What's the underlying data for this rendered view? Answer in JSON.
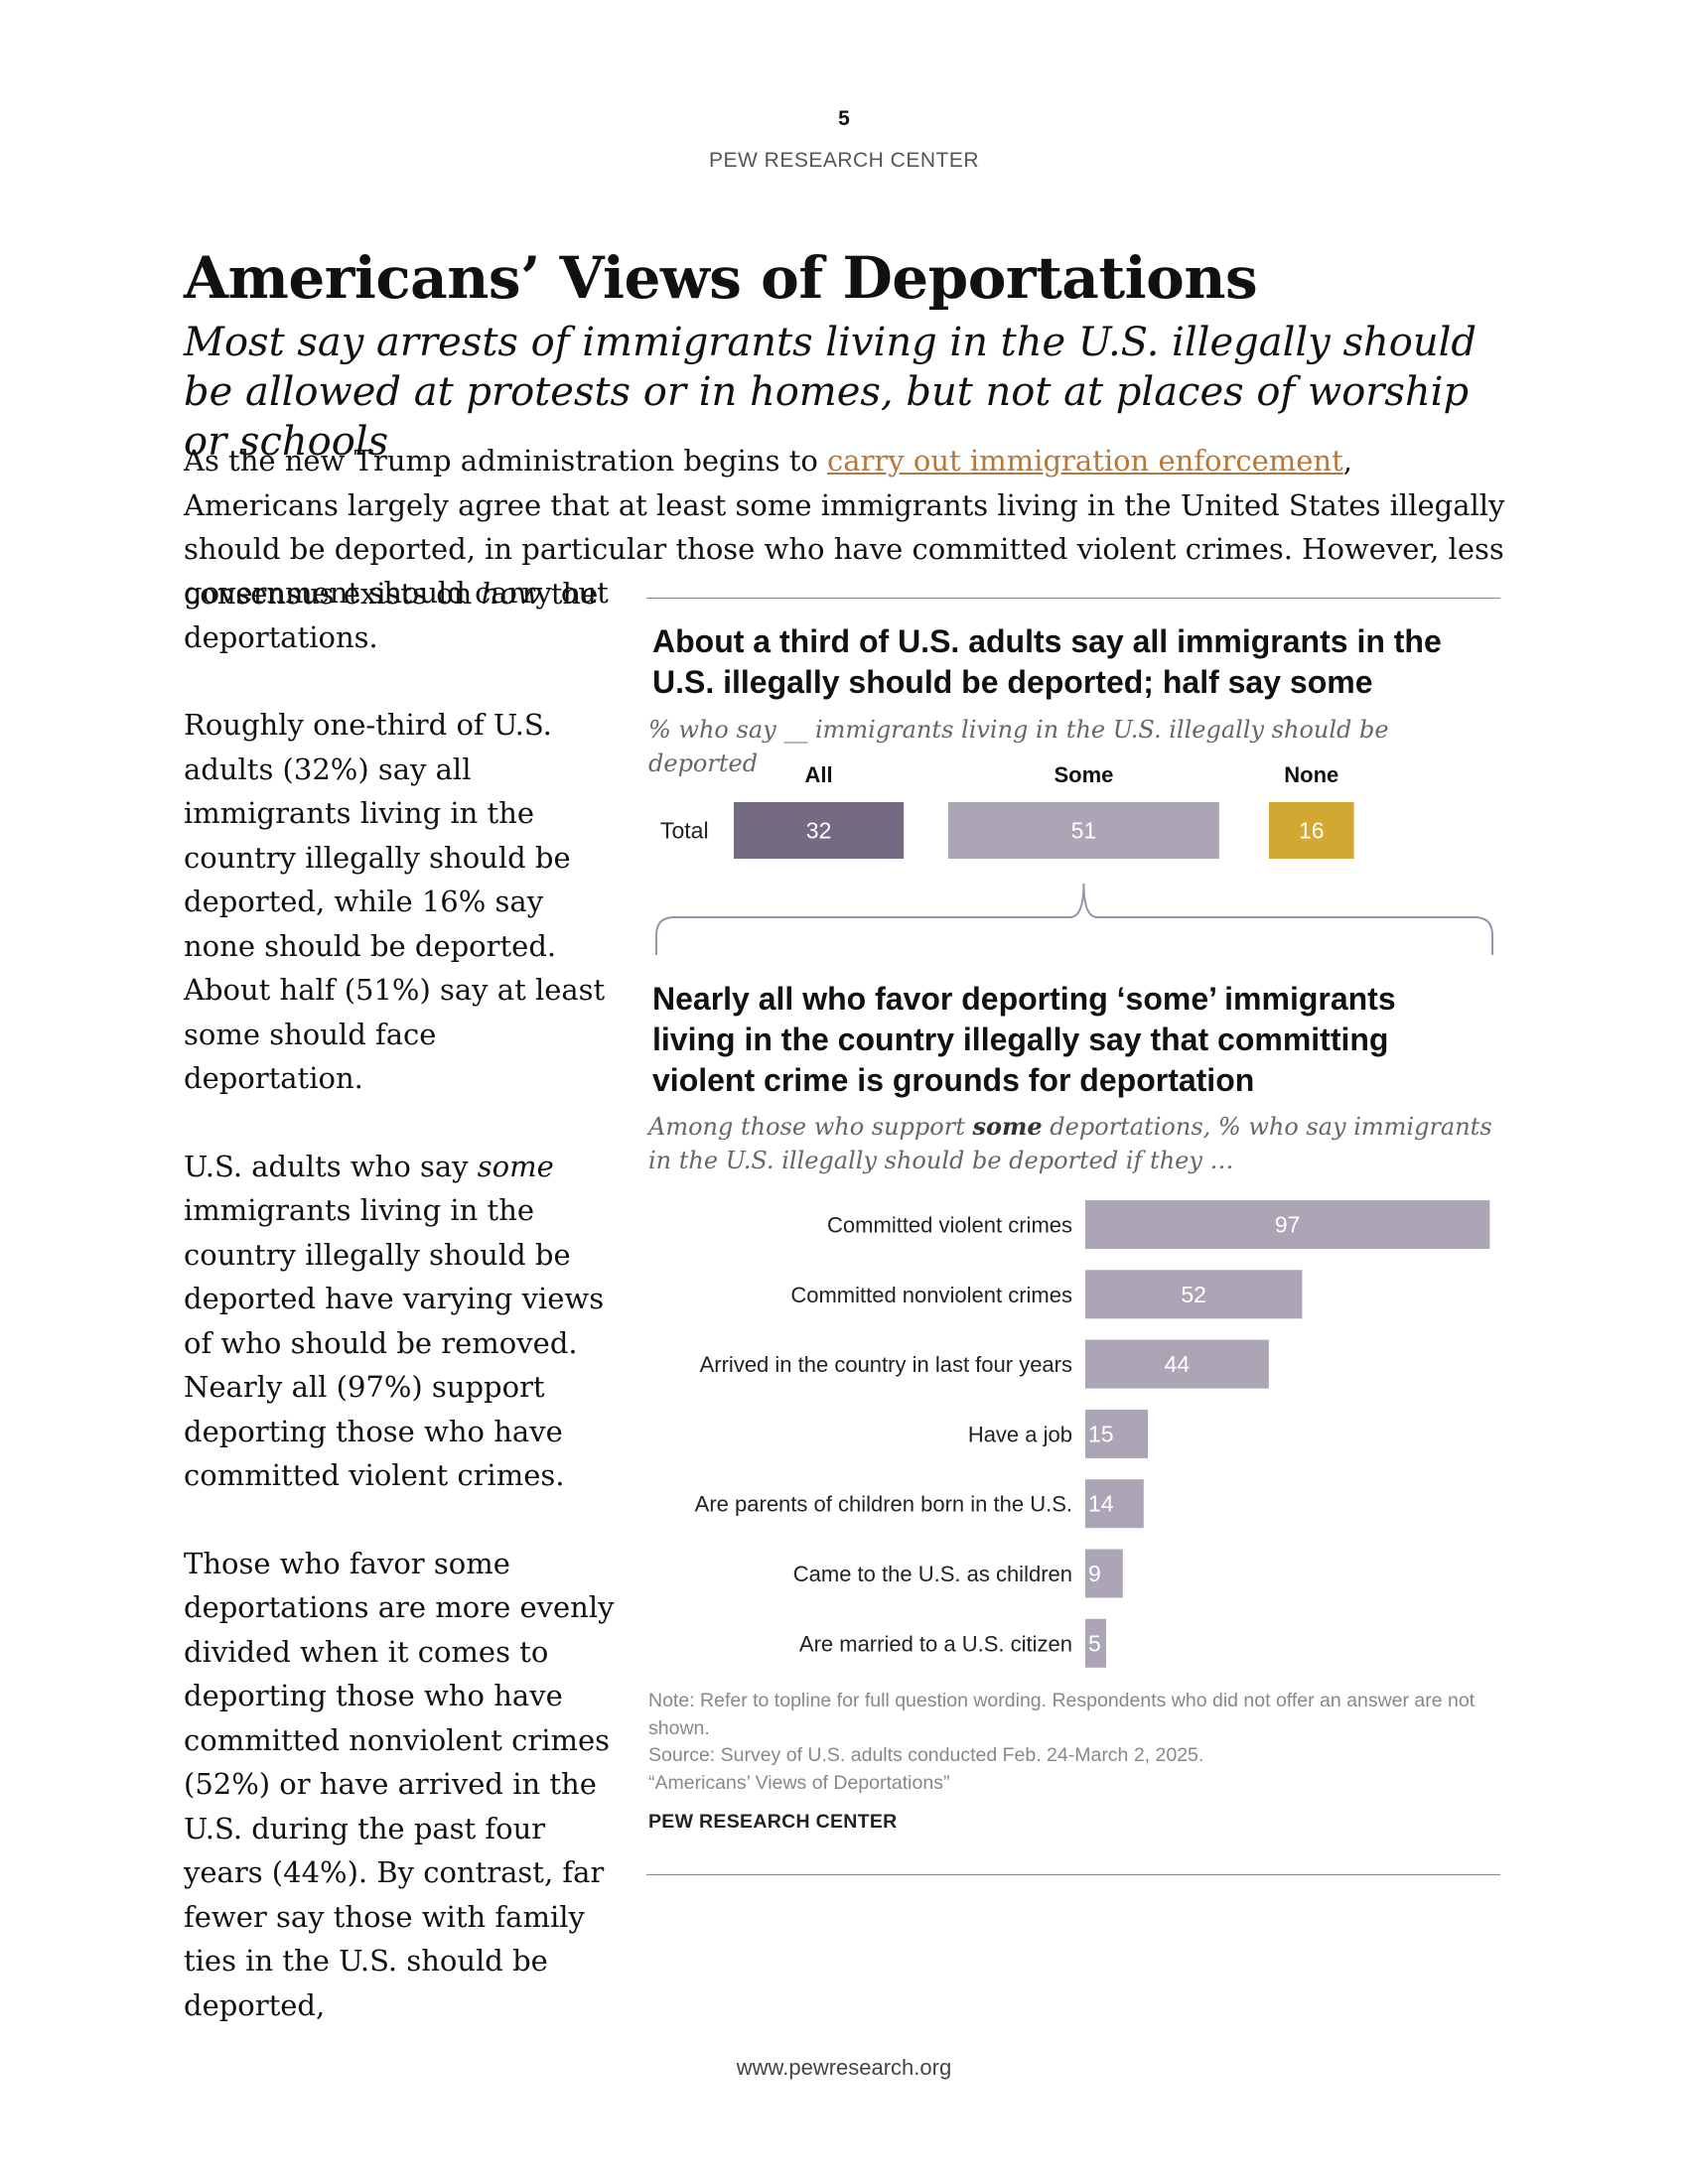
{
  "header": {
    "page_number": "5",
    "org": "PEW RESEARCH CENTER"
  },
  "title": "Americans’ Views of Deportations",
  "subtitle": "Most say arrests of immigrants living in the U.S. illegally should be allowed at protests or in homes, but not at places of worship or schools",
  "intro": {
    "text_before_link": "As the new Trump administration begins to ",
    "link_text": "carry out immigration enforcement",
    "text_after_link_1": ", Americans largely agree that at least some immigrants living in the United States illegally should be deported, in particular those who have committed violent crimes. However, less consensus exists on ",
    "emphasis": "how",
    "text_after_link_2": " the"
  },
  "left_column": {
    "p1": "government should carry out deportations.",
    "p2": "Roughly one-third of U.S. adults (32%) say all immigrants living in the country illegally should be deported, while 16% say none should be deported. About half (51%) say at least some should face deportation.",
    "p3_before": "U.S. adults who say ",
    "p3_emphasis": "some",
    "p3_after": " immigrants living in the country illegally should be deported have varying views of who should be removed. Nearly all (97%) support deporting those who have committed violent crimes.",
    "p4": "Those who favor some deportations are more evenly divided when it comes to deporting those who have committed nonviolent crimes (52%) or have arrived in the U.S. during the past four years (44%). By contrast, far fewer say those with family ties in the U.S. should be deported,"
  },
  "chart_data": [
    {
      "type": "bar",
      "orientation": "horizontal-stacked-segments",
      "title": "About a third of U.S. adults say all immigrants in the U.S. illegally should be deported; half say some",
      "subtitle": "% who say __ immigrants living in the U.S. illegally should be deported",
      "categories": [
        "Total"
      ],
      "series": [
        {
          "name": "All",
          "values": [
            32
          ],
          "color": "#746b82"
        },
        {
          "name": "Some",
          "values": [
            51
          ],
          "color": "#aca5b5"
        },
        {
          "name": "None",
          "values": [
            16
          ],
          "color": "#d2a833"
        }
      ]
    },
    {
      "type": "bar",
      "orientation": "horizontal",
      "title": "Nearly all who favor deporting ‘some’ immigrants living in the country illegally say that committing violent crime is grounds for deportation",
      "subtitle_before": "Among those who support ",
      "subtitle_bold": "some",
      "subtitle_after": " deportations, % who say immigrants in the U.S. illegally should be deported if they …",
      "categories": [
        "Committed violent crimes",
        "Committed nonviolent crimes",
        "Arrived in the country in last four years",
        "Have a job",
        "Are parents of children born in the U.S.",
        "Came to the U.S. as children",
        "Are married to a U.S. citizen"
      ],
      "values": [
        97,
        52,
        44,
        15,
        14,
        9,
        5
      ],
      "color": "#aca5b5",
      "xlim": [
        0,
        100
      ]
    }
  ],
  "notes": {
    "note": "Note: Refer to topline for full question wording. Respondents who did not offer an answer are not shown.",
    "source": "Source: Survey of U.S. adults conducted Feb. 24-March 2, 2025.",
    "report": "“Americans’ Views of Deportations”",
    "credit": "PEW RESEARCH CENTER"
  },
  "footer": {
    "url": "www.pewresearch.org"
  }
}
